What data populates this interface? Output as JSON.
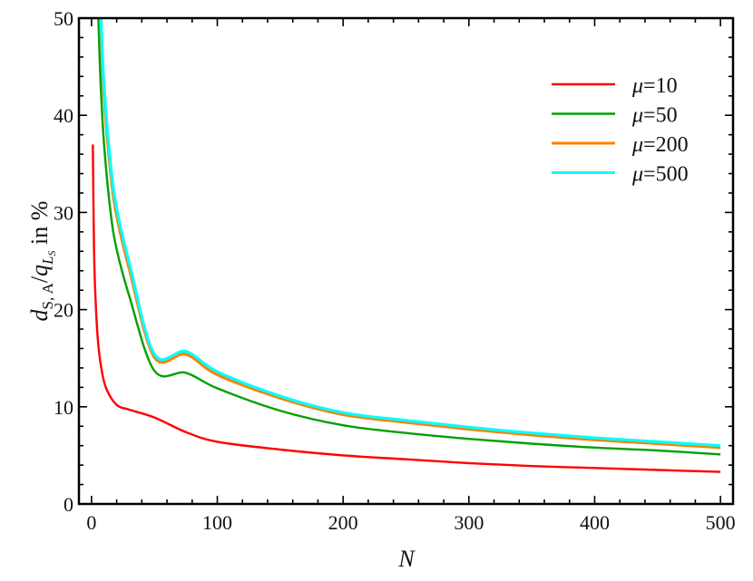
{
  "chart_data": {
    "type": "line",
    "title": "",
    "xlabel": "N",
    "ylabel": "d_{S,A}/q_{L_S} in %",
    "ylabel_parts": {
      "d": "d",
      "d_sub": "S, A",
      "slash": "/",
      "q": "q",
      "q_sub": "L",
      "q_subsub": "S",
      "suffix": " in %"
    },
    "xlim": [
      -10,
      510
    ],
    "ylim": [
      0,
      50
    ],
    "xticks": [
      0,
      100,
      200,
      300,
      400,
      500
    ],
    "yticks": [
      0,
      10,
      20,
      30,
      40,
      50
    ],
    "grid": false,
    "legend_position": "upper right",
    "series": [
      {
        "name": "μ=10",
        "mu": "10",
        "color": "#ff0000",
        "x": [
          1,
          2,
          3,
          5,
          8,
          12,
          20,
          30,
          50,
          75,
          100,
          150,
          200,
          250,
          300,
          350,
          400,
          450,
          500
        ],
        "y": [
          37.0,
          26.5,
          21.8,
          17.0,
          13.8,
          11.8,
          10.2,
          9.7,
          8.9,
          7.4,
          6.4,
          5.6,
          5.0,
          4.6,
          4.2,
          3.9,
          3.7,
          3.5,
          3.3
        ]
      },
      {
        "name": "μ=50",
        "mu": "50",
        "color": "#00a000",
        "x": [
          5,
          7,
          10,
          15,
          20,
          30,
          50,
          75,
          100,
          150,
          200,
          250,
          300,
          350,
          400,
          450,
          500
        ],
        "y": [
          52.0,
          44.0,
          37.0,
          30.2,
          26.2,
          21.4,
          13.7,
          13.5,
          11.9,
          9.6,
          8.1,
          7.3,
          6.7,
          6.2,
          5.8,
          5.5,
          5.1
        ]
      },
      {
        "name": "μ=200",
        "mu": "200",
        "color": "#ff8000",
        "x": [
          7,
          10,
          15,
          20,
          30,
          50,
          75,
          100,
          150,
          200,
          250,
          300,
          350,
          400,
          450,
          500
        ],
        "y": [
          50.0,
          42.0,
          34.3,
          29.7,
          24.2,
          15.1,
          15.4,
          13.3,
          10.9,
          9.2,
          8.4,
          7.7,
          7.1,
          6.6,
          6.2,
          5.8
        ]
      },
      {
        "name": "μ=500",
        "mu": "500",
        "color": "#00ffff",
        "x": [
          7.5,
          10,
          15,
          20,
          30,
          50,
          75,
          100,
          150,
          200,
          250,
          300,
          350,
          400,
          450,
          500
        ],
        "y": [
          50.0,
          43.0,
          35.1,
          30.4,
          24.8,
          15.4,
          15.7,
          13.6,
          11.1,
          9.4,
          8.6,
          7.9,
          7.3,
          6.8,
          6.4,
          6.0
        ]
      }
    ]
  },
  "legend": {
    "items": [
      {
        "label_mu": "μ",
        "label_value": "=10",
        "color": "#ff0000"
      },
      {
        "label_mu": "μ",
        "label_value": "=50",
        "color": "#00a000"
      },
      {
        "label_mu": "μ",
        "label_value": "=200",
        "color": "#ff8000"
      },
      {
        "label_mu": "μ",
        "label_value": "=500",
        "color": "#00ffff"
      }
    ]
  }
}
